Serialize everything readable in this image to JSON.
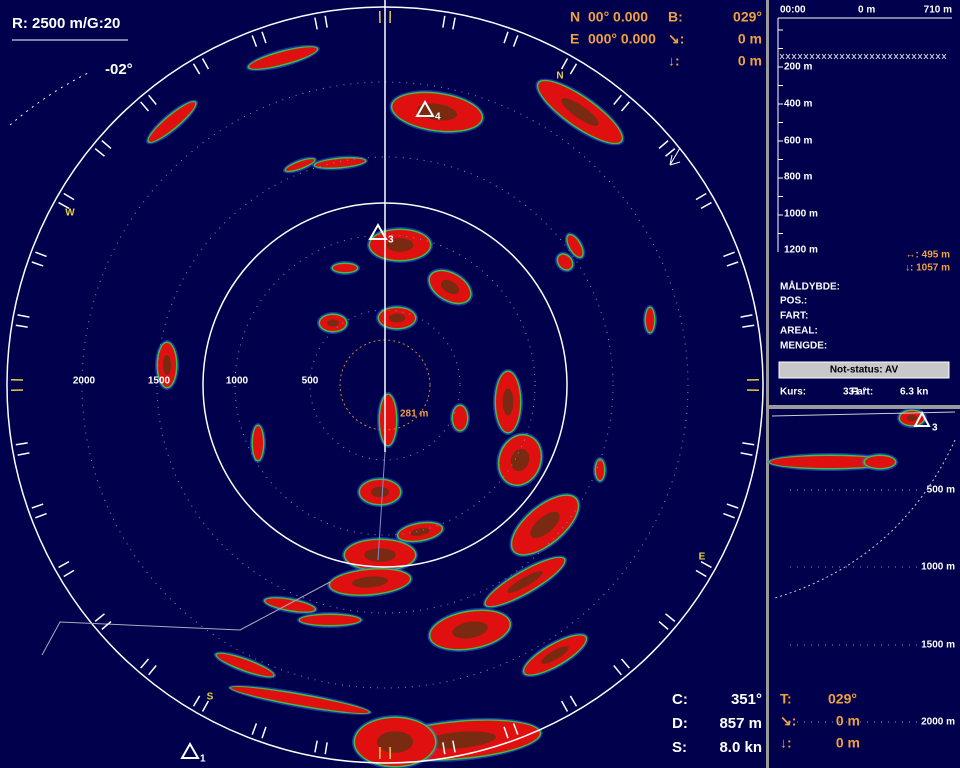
{
  "main": {
    "range_gain": "R: 2500 m/G:20",
    "tilt": "-02°",
    "position": {
      "n_label": "N",
      "n_value": "00° 0.000",
      "e_label": "E",
      "e_value": "000° 0.000"
    },
    "bearing": {
      "label": "B:",
      "value": "029°"
    },
    "distance": {
      "label": "↘:",
      "value": "0 m"
    },
    "depth": {
      "label": "↓:",
      "value": "0 m"
    },
    "range_labels": [
      "2000",
      "1500",
      "1000",
      "500"
    ],
    "marker_range": "281 m",
    "compass": {
      "n": "N",
      "w": "W",
      "e": "E",
      "s": "S"
    },
    "targets": [
      "4",
      "3",
      "1"
    ],
    "status": [
      {
        "label": "C:",
        "value": "351°"
      },
      {
        "label": "D:",
        "value": "857 m"
      },
      {
        "label": "S:",
        "value": "8.0 kn"
      }
    ]
  },
  "echogram": {
    "time": "00:00",
    "x_start": "0 m",
    "x_end": "710 m",
    "depth_labels": [
      "200 m",
      "400 m",
      "600 m",
      "800 m",
      "1000 m",
      "1200 m"
    ],
    "horizontal": "↔: 495 m",
    "vertical": "↓: 1057 m"
  },
  "info": {
    "fields": [
      "MÅLDYBDE:",
      "POS.:",
      "FART:",
      "AREAL:",
      "MENGDE:"
    ],
    "button": "Not-status: AV",
    "course_label": "Kurs:",
    "course_value": "331 °",
    "speed_label": "Fart:",
    "speed_value": "6.3 kn"
  },
  "side_view": {
    "target": "3",
    "depth_labels": [
      "500 m",
      "1000 m",
      "1500 m",
      "2000 m"
    ],
    "t_label": "T:",
    "t_value": "029°",
    "distance_label": "↘:",
    "distance_value": "0 m",
    "depth_label": "↓:",
    "depth_value": "0 m"
  }
}
